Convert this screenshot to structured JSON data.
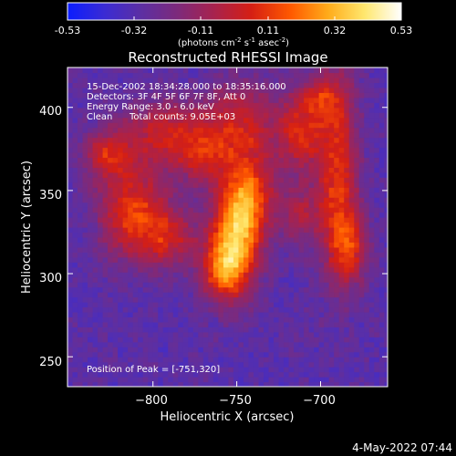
{
  "colorbar": {
    "ticks": [
      "-0.53",
      "-0.32",
      "-0.11",
      "0.11",
      "0.32",
      "0.53"
    ],
    "units_main": "(photons cm",
    "units_exp1": "-2",
    "units_mid": " s",
    "units_exp2": "-1",
    "units_end": " asec",
    "units_exp3": "-2",
    "units_close": ")",
    "colors": [
      "#0b1dff",
      "#3a2bd4",
      "#5c2fa3",
      "#7d2a7b",
      "#a8224d",
      "#d51f14",
      "#ff5a00",
      "#ffab1a",
      "#ffe76e",
      "#ffffff"
    ]
  },
  "title": "Reconstructed RHESSI Image",
  "annotations": {
    "line1": "15-Dec-2002 18:34:28.000 to 18:35:16.000",
    "line2": "Detectors: 3F 4F 5F 6F 7F 8F, Att 0",
    "line3": "Energy Range: 3.0 - 6.0 keV",
    "line4_a": "Clean",
    "line4_b": "Total counts: 9.05E+03",
    "peak": "Position of Peak = [-751,320]"
  },
  "footer_timestamp": "4-May-2022 07:44",
  "chart_data": {
    "type": "heatmap",
    "title": "Reconstructed RHESSI Image",
    "xlabel": "Heliocentric X (arcsec)",
    "ylabel": "Heliocentric Y (arcsec)",
    "xlim": [
      -851,
      -660
    ],
    "ylim": [
      232,
      424
    ],
    "x_ticks": [
      -800,
      -750,
      -700
    ],
    "x_tick_labels": [
      "−800",
      "−750",
      "−700"
    ],
    "y_ticks": [
      250,
      300,
      350,
      400
    ],
    "y_tick_labels": [
      "250",
      "300",
      "350",
      "400"
    ],
    "colorbar_range": [
      -0.53,
      0.53
    ],
    "peak": {
      "x": -751,
      "y": 320
    },
    "sources": [
      {
        "x": -751,
        "y": 320,
        "sx": 10,
        "sy": 22,
        "amp": 0.55
      },
      {
        "x": -742,
        "y": 348,
        "sx": 11,
        "sy": 20,
        "amp": 0.38
      },
      {
        "x": -760,
        "y": 302,
        "sx": 9,
        "sy": 12,
        "amp": 0.34
      },
      {
        "x": -812,
        "y": 338,
        "sx": 14,
        "sy": 20,
        "amp": 0.4
      },
      {
        "x": -828,
        "y": 372,
        "sx": 10,
        "sy": 10,
        "amp": 0.3
      },
      {
        "x": -790,
        "y": 322,
        "sx": 12,
        "sy": 12,
        "amp": 0.28
      },
      {
        "x": -793,
        "y": 385,
        "sx": 18,
        "sy": 14,
        "amp": 0.3
      },
      {
        "x": -748,
        "y": 392,
        "sx": 16,
        "sy": 16,
        "amp": 0.3
      },
      {
        "x": -712,
        "y": 384,
        "sx": 10,
        "sy": 16,
        "amp": 0.32
      },
      {
        "x": -690,
        "y": 360,
        "sx": 9,
        "sy": 40,
        "amp": 0.38
      },
      {
        "x": -683,
        "y": 315,
        "sx": 8,
        "sy": 16,
        "amp": 0.3
      },
      {
        "x": -712,
        "y": 335,
        "sx": 9,
        "sy": 12,
        "amp": 0.22
      },
      {
        "x": -700,
        "y": 406,
        "sx": 10,
        "sy": 9,
        "amp": 0.26
      },
      {
        "x": -770,
        "y": 370,
        "sx": 12,
        "sy": 12,
        "amp": 0.25
      }
    ],
    "background": -0.3
  }
}
